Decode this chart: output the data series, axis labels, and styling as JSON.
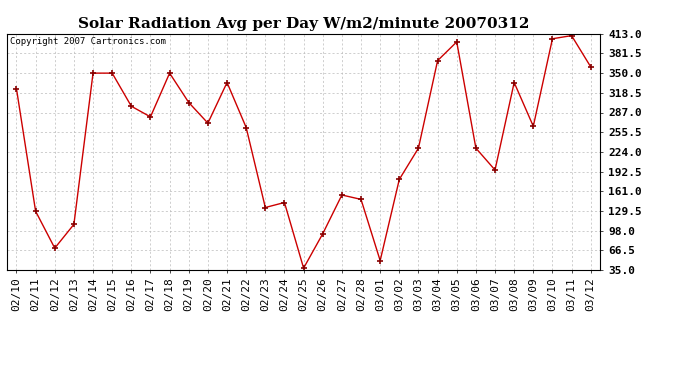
{
  "title": "Solar Radiation Avg per Day W/m2/minute 20070312",
  "copyright": "Copyright 2007 Cartronics.com",
  "dates": [
    "02/10",
    "02/11",
    "02/12",
    "02/13",
    "02/14",
    "02/15",
    "02/16",
    "02/17",
    "02/18",
    "02/19",
    "02/20",
    "02/21",
    "02/22",
    "02/23",
    "02/24",
    "02/25",
    "02/26",
    "02/27",
    "02/28",
    "03/01",
    "03/02",
    "03/03",
    "03/04",
    "03/05",
    "03/06",
    "03/07",
    "03/08",
    "03/09",
    "03/10",
    "03/11",
    "03/12"
  ],
  "values": [
    325,
    129,
    70,
    108,
    350,
    350,
    297,
    280,
    350,
    303,
    270,
    335,
    263,
    135,
    143,
    38,
    93,
    155,
    148,
    50,
    180,
    230,
    370,
    400,
    230,
    195,
    335,
    265,
    405,
    410,
    360
  ],
  "line_color": "#cc0000",
  "marker_color": "#880000",
  "bg_color": "#ffffff",
  "plot_bg_color": "#ffffff",
  "grid_color": "#bbbbbb",
  "yticks": [
    35.0,
    66.5,
    98.0,
    129.5,
    161.0,
    192.5,
    224.0,
    255.5,
    287.0,
    318.5,
    350.0,
    381.5,
    413.0
  ],
  "ylim": [
    35.0,
    413.0
  ],
  "title_fontsize": 11,
  "tick_fontsize": 8,
  "copyright_fontsize": 6.5
}
